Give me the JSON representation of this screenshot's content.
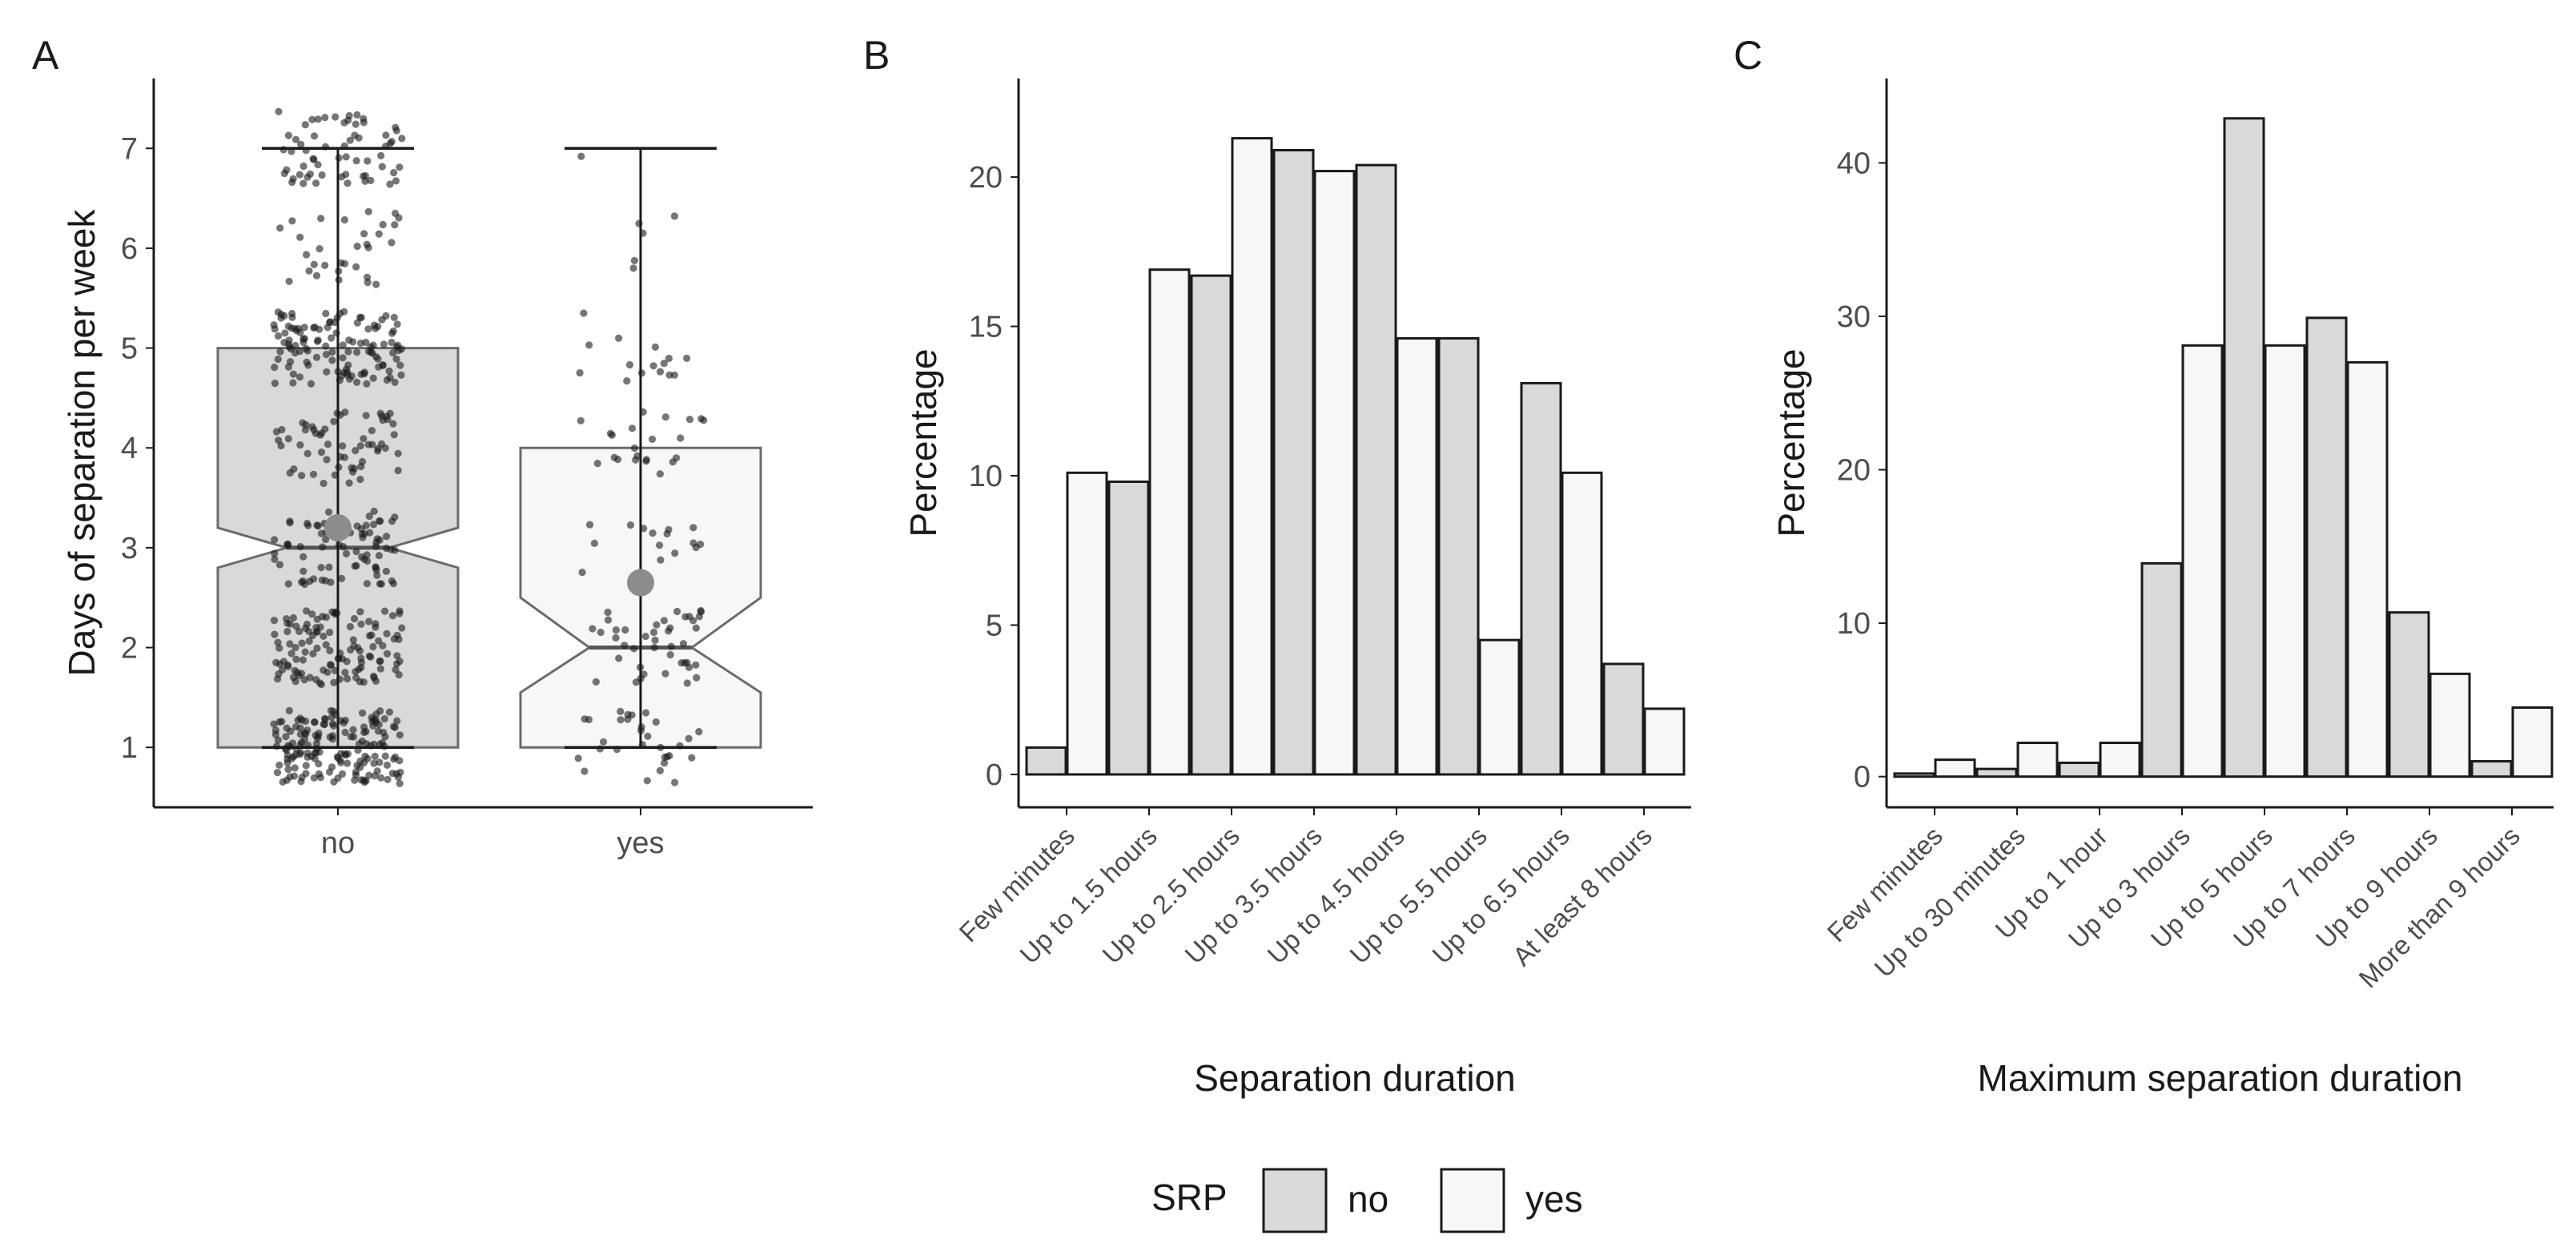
{
  "colors": {
    "no": "#d9d9d9",
    "yes": "#f7f7f7",
    "stroke": "#1a1a1a",
    "point": "#1a1a1a",
    "mean": "#8c8c8c",
    "box_edge": "#6b6b6b"
  },
  "legend": {
    "title": "SRP",
    "items": [
      "no",
      "yes"
    ]
  },
  "chart_data": [
    {
      "panel": "A",
      "type": "box",
      "ylabel": "Days of separation per week",
      "xlabel": "",
      "categories": [
        "no",
        "yes"
      ],
      "ylim": [
        0.4,
        7.7
      ],
      "yticks": [
        1,
        2,
        3,
        4,
        5,
        6,
        7
      ],
      "boxes": [
        {
          "name": "no",
          "min": 1,
          "q1": 1,
          "median": 3,
          "q3": 5,
          "max": 7,
          "notch_low": 2.8,
          "notch_high": 3.2,
          "mean": 3.2,
          "n_points": 650
        },
        {
          "name": "yes",
          "min": 1,
          "q1": 1,
          "median": 2,
          "q3": 4,
          "max": 7,
          "notch_low": 1.55,
          "notch_high": 2.5,
          "mean": 2.65,
          "n_points": 130
        }
      ]
    },
    {
      "panel": "B",
      "type": "bar",
      "xlabel": "Separation duration",
      "ylabel": "Percentage",
      "ylim": [
        -1.1,
        23.3
      ],
      "yticks": [
        0,
        5,
        10,
        15,
        20
      ],
      "categories": [
        "Few minutes",
        "Up to 1.5 hours",
        "Up to 2.5 hours",
        "Up to 3.5 hours",
        "Up to 4.5 hours",
        "Up to 5.5 hours",
        "Up to 6.5 hours",
        "At least 8 hours"
      ],
      "series": [
        {
          "name": "no",
          "values": [
            0.9,
            9.8,
            16.7,
            20.9,
            20.4,
            14.6,
            13.1,
            3.7
          ]
        },
        {
          "name": "yes",
          "values": [
            10.1,
            16.9,
            21.3,
            20.2,
            14.6,
            4.5,
            10.1,
            2.2
          ]
        }
      ]
    },
    {
      "panel": "C",
      "type": "bar",
      "xlabel": "Maximum separation duration",
      "ylabel": "Percentage",
      "ylim": [
        -2,
        45.5
      ],
      "yticks": [
        0,
        10,
        20,
        30,
        40
      ],
      "categories": [
        "Few minutes",
        "Up to 30 minutes",
        "Up to 1 hour",
        "Up to 3 hours",
        "Up to 5 hours",
        "Up to 7 hours",
        "Up to 9 hours",
        "More than 9 hours"
      ],
      "series": [
        {
          "name": "no",
          "values": [
            0.2,
            0.5,
            0.9,
            13.9,
            42.9,
            29.9,
            10.7,
            1.0
          ]
        },
        {
          "name": "yes",
          "values": [
            1.1,
            2.2,
            2.2,
            28.1,
            28.1,
            27.0,
            6.7,
            4.5
          ]
        }
      ]
    }
  ]
}
